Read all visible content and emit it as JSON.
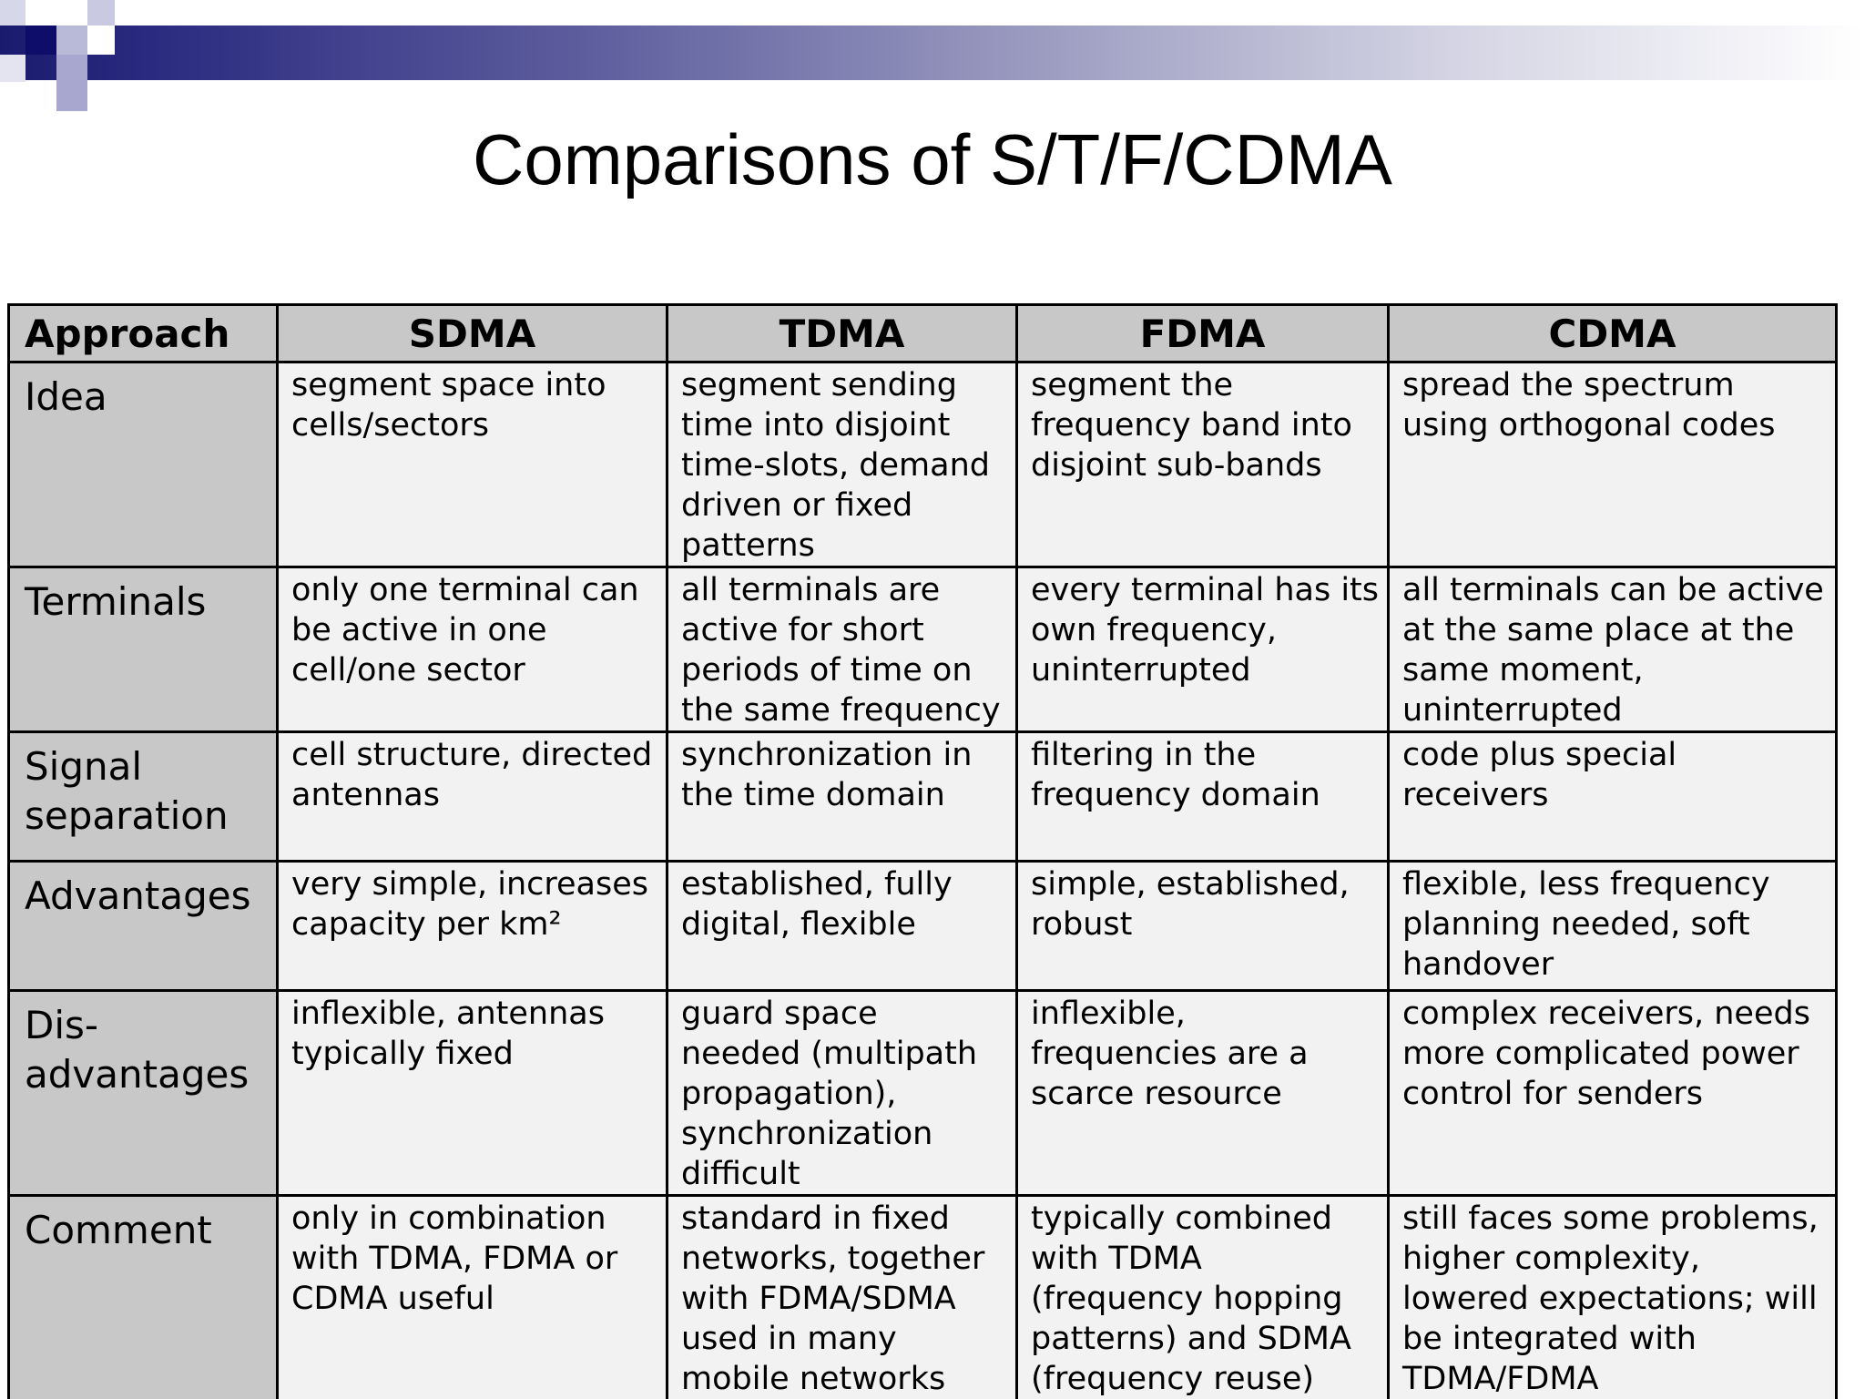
{
  "title": "Comparisons of S/T/F/CDMA",
  "table": {
    "headers": [
      "Approach",
      "SDMA",
      "TDMA",
      "FDMA",
      "CDMA"
    ],
    "rows": [
      {
        "label": "Idea",
        "cells": [
          "segment space into\ncells/sectors",
          "segment sending\ntime into disjoint\ntime-slots, demand\ndriven or fixed\npatterns",
          "segment the\nfrequency band into\ndisjoint sub-bands",
          "spread the spectrum\nusing orthogonal codes"
        ]
      },
      {
        "label": "Terminals",
        "cells": [
          "only one terminal can\nbe active in one\ncell/one sector",
          "all terminals are\nactive for short\nperiods of time on\nthe same frequency",
          "every terminal has its\nown frequency,\nuninterrupted",
          "all terminals can be active\nat the same place at the\nsame moment,\nuninterrupted"
        ]
      },
      {
        "label": "Signal\nseparation",
        "cells": [
          "cell structure, directed\nantennas",
          "synchronization in\nthe time domain",
          "filtering in the\nfrequency domain",
          "code plus special\nreceivers"
        ]
      },
      {
        "label": "Advantages",
        "cells": [
          "very simple, increases\ncapacity per km²",
          "established, fully\ndigital, flexible",
          "simple, established,\nrobust",
          "flexible, less frequency\nplanning needed, soft\nhandover"
        ]
      },
      {
        "label": "Dis-\nadvantages",
        "cells": [
          "inflexible, antennas\ntypically fixed",
          "guard space\nneeded (multipath\npropagation),\nsynchronization\ndifficult",
          "inflexible,\nfrequencies are a\nscarce resource",
          "complex receivers, needs\nmore complicated power\ncontrol for senders"
        ]
      },
      {
        "label": "Comment",
        "cells": [
          "only in combination\nwith TDMA, FDMA or\nCDMA useful",
          "standard in fixed\nnetworks, together\nwith FDMA/SDMA\nused in many\nmobile networks",
          "typically combined\nwith TDMA\n(frequency hopping\npatterns) and SDMA\n(frequency reuse)",
          "still faces some problems,\nhigher complexity,\nlowered expectations; will\nbe integrated with\nTDMA/FDMA"
        ]
      }
    ]
  }
}
